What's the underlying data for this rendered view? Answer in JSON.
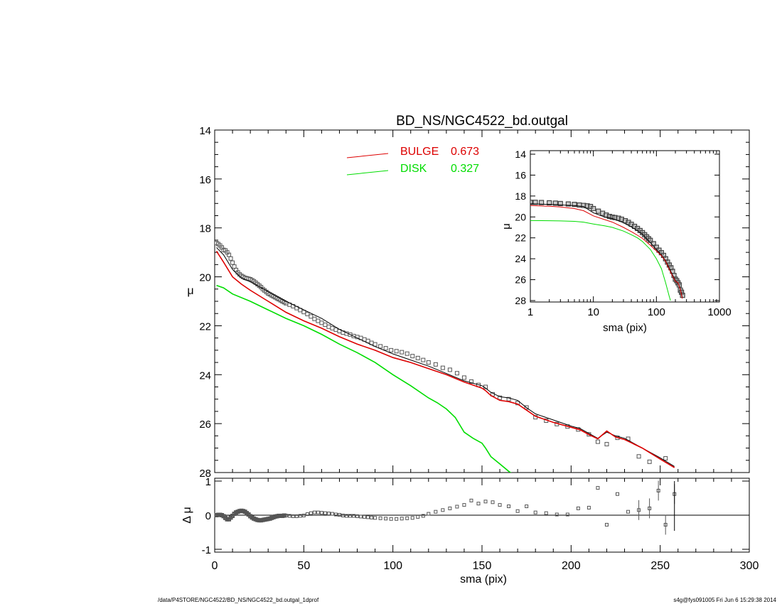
{
  "footer": {
    "left": "/data/P4STORE/NGC4522/BD_NS/NGC4522_bd.outgal_1dprof",
    "right": "s4g@fys091005  Fri Jun  6 15:29:38 2014"
  },
  "colors": {
    "total": "#000000",
    "bulge": "#dd0000",
    "disk": "#00dd00",
    "points": "#555555"
  },
  "chart_data": [
    {
      "type": "scatter",
      "panel": "main",
      "title": "BD_NS/NGC4522_bd.outgal",
      "xlabel": "",
      "ylabel": "μ",
      "xlim": [
        0,
        300
      ],
      "ylim": [
        28,
        14
      ],
      "y_reversed": true,
      "yticks": [
        14,
        16,
        18,
        20,
        22,
        24,
        26,
        28
      ],
      "xticks": [
        0,
        50,
        100,
        150,
        200,
        250,
        300
      ],
      "legend": {
        "placement": "top-center",
        "entries": [
          {
            "label": "BULGE",
            "value": "0.673",
            "color": "#dd0000"
          },
          {
            "label": "DISK",
            "value": "0.327",
            "color": "#00dd00"
          }
        ]
      },
      "series": [
        {
          "key": "observed",
          "style": "points",
          "x": [
            1,
            2,
            3,
            4,
            5,
            6,
            7,
            8,
            9,
            10,
            11,
            12,
            13,
            14,
            15,
            16,
            17,
            18,
            19,
            20,
            21,
            22,
            23,
            24,
            25,
            26,
            27,
            28,
            29,
            30,
            31,
            32,
            33,
            34,
            35,
            36,
            37,
            38,
            39,
            40,
            42,
            44,
            46,
            48,
            50,
            52,
            54,
            56,
            58,
            60,
            62,
            64,
            66,
            68,
            70,
            72,
            74,
            76,
            78,
            80,
            82,
            84,
            86,
            88,
            90,
            93,
            96,
            99,
            102,
            105,
            108,
            111,
            114,
            117,
            120,
            124,
            128,
            132,
            136,
            140,
            144,
            148,
            152,
            156,
            160,
            165,
            170,
            175,
            180,
            186,
            192,
            198,
            204,
            210,
            215,
            220,
            226,
            232,
            238,
            244,
            253
          ],
          "y": [
            18.62,
            18.66,
            18.72,
            18.8,
            18.9,
            18.92,
            19.0,
            19.1,
            19.25,
            19.42,
            19.58,
            19.72,
            19.82,
            19.9,
            19.96,
            20.0,
            20.04,
            20.06,
            20.08,
            20.1,
            20.14,
            20.18,
            20.24,
            20.3,
            20.36,
            20.42,
            20.5,
            20.56,
            20.62,
            20.68,
            20.72,
            20.76,
            20.8,
            20.84,
            20.88,
            20.92,
            20.96,
            21.0,
            21.04,
            21.08,
            21.14,
            21.2,
            21.28,
            21.36,
            21.44,
            21.52,
            21.62,
            21.72,
            21.8,
            21.88,
            21.96,
            22.04,
            22.1,
            22.16,
            22.22,
            22.28,
            22.32,
            22.36,
            22.42,
            22.46,
            22.5,
            22.56,
            22.62,
            22.7,
            22.76,
            22.84,
            22.92,
            23.0,
            23.04,
            23.08,
            23.14,
            23.24,
            23.32,
            23.4,
            23.5,
            23.58,
            23.72,
            23.8,
            23.94,
            24.12,
            24.28,
            24.42,
            24.5,
            24.8,
            24.94,
            25.0,
            25.16,
            25.34,
            25.74,
            25.88,
            26.02,
            26.12,
            26.24,
            26.44,
            26.74,
            26.84,
            26.58,
            26.62,
            27.34,
            27.56,
            27.42
          ]
        },
        {
          "key": "total",
          "style": "line",
          "x": [
            1,
            5,
            10,
            15,
            20,
            30,
            40,
            50,
            60,
            70,
            80,
            90,
            100,
            110,
            120,
            130,
            140,
            150,
            152,
            155,
            160,
            165,
            170,
            175,
            180,
            190,
            200,
            205,
            210,
            215,
            220,
            225,
            230,
            240,
            250,
            258
          ],
          "y": [
            18.8,
            19.1,
            19.7,
            20.05,
            20.2,
            20.6,
            21.0,
            21.35,
            21.7,
            22.15,
            22.5,
            22.85,
            23.15,
            23.4,
            23.65,
            23.95,
            24.25,
            24.45,
            24.55,
            24.72,
            24.9,
            24.95,
            25.05,
            25.35,
            25.6,
            25.85,
            26.1,
            26.2,
            26.4,
            26.6,
            26.35,
            26.5,
            26.6,
            27.0,
            27.4,
            27.75
          ]
        },
        {
          "key": "bulge",
          "style": "line",
          "x": [
            1,
            5,
            10,
            15,
            20,
            30,
            40,
            50,
            60,
            70,
            80,
            90,
            100,
            110,
            120,
            130,
            140,
            150,
            152,
            155,
            160,
            165,
            170,
            175,
            180,
            190,
            200,
            205,
            210,
            215,
            220,
            225,
            230,
            240,
            250,
            258
          ],
          "y": [
            18.95,
            19.4,
            20.0,
            20.3,
            20.55,
            21.0,
            21.45,
            21.8,
            22.1,
            22.45,
            22.75,
            23.0,
            23.3,
            23.5,
            23.75,
            24.0,
            24.3,
            24.55,
            24.65,
            24.85,
            25.05,
            25.1,
            25.2,
            25.45,
            25.7,
            25.95,
            26.15,
            26.25,
            26.45,
            26.62,
            26.3,
            26.55,
            26.65,
            27.0,
            27.45,
            27.8
          ]
        },
        {
          "key": "disk",
          "style": "line",
          "x": [
            1,
            5,
            10,
            20,
            30,
            40,
            50,
            60,
            70,
            80,
            90,
            100,
            110,
            120,
            125,
            130,
            135,
            140,
            145,
            150,
            152,
            155,
            160,
            165,
            167
          ],
          "y": [
            20.35,
            20.45,
            20.7,
            21.0,
            21.35,
            21.7,
            22.0,
            22.35,
            22.75,
            23.1,
            23.5,
            24.0,
            24.45,
            24.95,
            25.15,
            25.4,
            25.75,
            26.35,
            26.6,
            26.8,
            27.0,
            27.35,
            27.65,
            27.95,
            28.05
          ]
        }
      ]
    },
    {
      "type": "scatter",
      "panel": "residual",
      "xlabel": "sma (pix)",
      "ylabel": "Δ μ",
      "xlim": [
        0,
        300
      ],
      "ylim": [
        -1,
        1
      ],
      "yticks": [
        -1,
        0,
        1
      ],
      "xticks": [
        0,
        50,
        100,
        150,
        200,
        250,
        300
      ],
      "series": [
        {
          "key": "residual",
          "style": "points",
          "x": [
            1,
            2,
            3,
            4,
            5,
            6,
            7,
            8,
            9,
            10,
            11,
            12,
            13,
            14,
            15,
            16,
            17,
            18,
            19,
            20,
            21,
            22,
            23,
            24,
            25,
            26,
            27,
            28,
            29,
            30,
            31,
            32,
            33,
            34,
            35,
            36,
            37,
            38,
            39,
            40,
            42,
            44,
            46,
            48,
            50,
            52,
            54,
            56,
            58,
            60,
            62,
            64,
            66,
            68,
            70,
            72,
            74,
            76,
            78,
            80,
            82,
            84,
            86,
            88,
            90,
            93,
            96,
            99,
            102,
            105,
            108,
            111,
            114,
            117,
            120,
            124,
            128,
            132,
            136,
            140,
            144,
            148,
            152,
            156,
            160,
            165,
            170,
            175,
            180,
            186,
            192,
            198,
            204,
            210,
            215,
            220,
            226,
            232,
            238,
            244,
            249,
            253,
            258
          ],
          "y": [
            0.0,
            0.01,
            0.01,
            0.0,
            -0.03,
            -0.08,
            -0.12,
            -0.12,
            -0.07,
            -0.02,
            0.04,
            0.08,
            0.1,
            0.12,
            0.13,
            0.12,
            0.1,
            0.06,
            0.02,
            -0.03,
            -0.07,
            -0.1,
            -0.12,
            -0.14,
            -0.15,
            -0.15,
            -0.14,
            -0.13,
            -0.12,
            -0.11,
            -0.1,
            -0.08,
            -0.06,
            -0.04,
            -0.03,
            -0.02,
            -0.02,
            -0.02,
            -0.01,
            -0.01,
            -0.02,
            -0.03,
            -0.03,
            -0.02,
            -0.01,
            0.03,
            0.06,
            0.08,
            0.08,
            0.07,
            0.06,
            0.05,
            0.04,
            0.02,
            0.01,
            -0.01,
            -0.02,
            -0.02,
            -0.02,
            -0.03,
            -0.04,
            -0.05,
            -0.06,
            -0.07,
            -0.08,
            -0.09,
            -0.1,
            -0.11,
            -0.11,
            -0.1,
            -0.09,
            -0.08,
            -0.05,
            -0.02,
            0.04,
            0.1,
            0.15,
            0.2,
            0.25,
            0.3,
            0.43,
            0.34,
            0.4,
            0.38,
            0.3,
            0.26,
            0.12,
            0.26,
            0.08,
            0.06,
            0.02,
            0.02,
            0.2,
            0.22,
            0.8,
            -0.28,
            0.62,
            0.1,
            0.15,
            0.2,
            0.72,
            -0.28,
            0.62
          ]
        }
      ]
    },
    {
      "type": "scatter",
      "panel": "inset",
      "xlabel": "sma (pix)",
      "ylabel": "μ",
      "xscale": "log",
      "xlim": [
        1,
        1000
      ],
      "ylim": [
        28,
        14
      ],
      "y_reversed": true,
      "xticks": [
        1,
        10,
        100,
        1000
      ],
      "yticks": [
        14,
        16,
        18,
        20,
        22,
        24,
        26,
        28
      ],
      "series": [
        {
          "key": "observed",
          "style": "points",
          "x": [
            1,
            1.2,
            1.5,
            2,
            2.5,
            3,
            4,
            5,
            6,
            7,
            8,
            9,
            10,
            12,
            14,
            16,
            18,
            20,
            22,
            25,
            28,
            32,
            36,
            40,
            45,
            50,
            55,
            60,
            65,
            70,
            75,
            80,
            90,
            100,
            110,
            120,
            130,
            140,
            150,
            160,
            170,
            180,
            190,
            200,
            210,
            220,
            230,
            240,
            250,
            260
          ],
          "y": [
            18.6,
            18.6,
            18.62,
            18.65,
            18.68,
            18.72,
            18.76,
            18.8,
            18.86,
            18.9,
            18.94,
            19.0,
            19.2,
            19.45,
            19.65,
            19.82,
            19.95,
            20.02,
            20.06,
            20.12,
            20.22,
            20.36,
            20.52,
            20.7,
            20.9,
            21.1,
            21.3,
            21.5,
            21.7,
            21.9,
            22.08,
            22.24,
            22.56,
            22.9,
            23.18,
            23.42,
            23.68,
            24.0,
            24.32,
            24.6,
            24.86,
            25.2,
            25.6,
            25.95,
            26.1,
            26.3,
            26.5,
            27.0,
            27.2,
            27.5
          ]
        },
        {
          "key": "total",
          "style": "line",
          "x": [
            1,
            2,
            3,
            5,
            7,
            10,
            15,
            20,
            30,
            40,
            50,
            60,
            70,
            80,
            100,
            120,
            140,
            160,
            180,
            200,
            220,
            240,
            258
          ],
          "y": [
            18.75,
            18.8,
            18.85,
            18.92,
            19.0,
            19.6,
            20.0,
            20.15,
            20.55,
            20.95,
            21.3,
            21.65,
            22.1,
            22.45,
            23.1,
            23.65,
            24.2,
            24.9,
            25.55,
            26.1,
            26.35,
            26.9,
            27.7
          ]
        },
        {
          "key": "bulge",
          "style": "line",
          "x": [
            1,
            2,
            3,
            5,
            7,
            10,
            15,
            20,
            30,
            40,
            50,
            60,
            70,
            80,
            100,
            120,
            140,
            160,
            180,
            200,
            220,
            240,
            258
          ],
          "y": [
            18.9,
            18.98,
            19.05,
            19.2,
            19.4,
            19.9,
            20.25,
            20.5,
            21.0,
            21.4,
            21.75,
            22.05,
            22.4,
            22.7,
            23.25,
            23.7,
            24.25,
            25.0,
            25.65,
            26.15,
            26.3,
            26.95,
            27.8
          ]
        },
        {
          "key": "disk",
          "style": "line",
          "x": [
            1,
            2,
            3,
            5,
            7,
            10,
            15,
            20,
            30,
            40,
            50,
            60,
            70,
            80,
            100,
            120,
            140,
            160,
            167
          ],
          "y": [
            20.35,
            20.36,
            20.38,
            20.42,
            20.5,
            20.68,
            20.85,
            21.0,
            21.35,
            21.7,
            22.0,
            22.35,
            22.75,
            23.1,
            24.0,
            24.95,
            26.3,
            27.6,
            28.0
          ]
        }
      ]
    }
  ]
}
